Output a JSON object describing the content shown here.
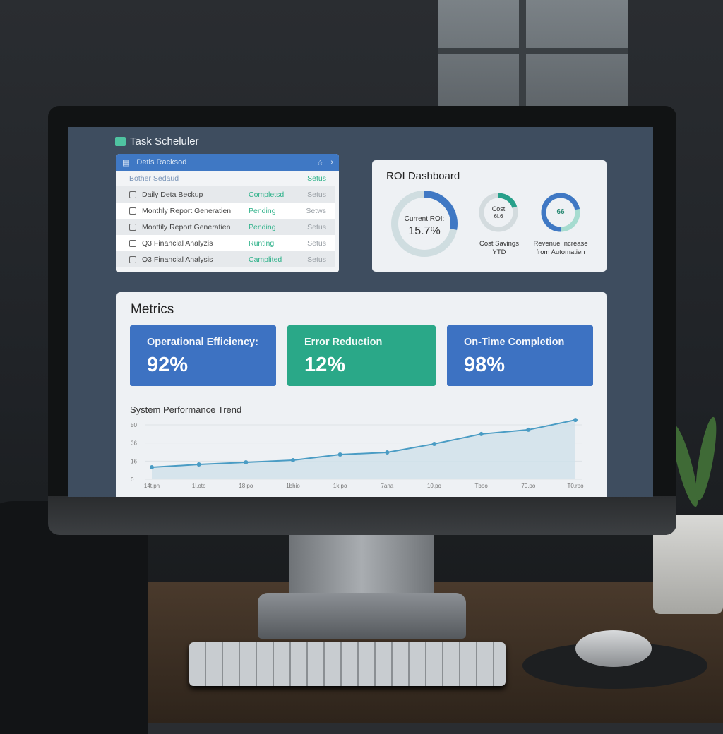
{
  "app": {
    "title": "Task Scheluler"
  },
  "tasks_panel": {
    "header": "Detis Racksod",
    "subheader": {
      "name": "Bother Sedaud",
      "status": "Setus"
    },
    "rows": [
      {
        "name": "Daily Deta Beckup",
        "status": "Completsd",
        "action": "Setus"
      },
      {
        "name": "Monthly Report Generatien",
        "status": "Pending",
        "action": "Setws"
      },
      {
        "name": "Monttily Report Generatien",
        "status": "Pending",
        "action": "Setus"
      },
      {
        "name": "Q3 Financial Analyzis",
        "status": "Runting",
        "action": "Setus"
      },
      {
        "name": "Q3 Financial Analysis",
        "status": "Camplited",
        "action": "Setus"
      }
    ]
  },
  "roi": {
    "title": "ROI Dashboard",
    "current": {
      "label": "Current ROI:",
      "value": "15.7%",
      "fill": 0.28
    },
    "cost": {
      "inner": "Cost",
      "inner_value": "6l.6",
      "label1": "Cost Savings",
      "label2": "YTD",
      "fill": 0.2
    },
    "revenue": {
      "inner": "66",
      "label1": "Revenue Increase",
      "label2": "from Automatien",
      "fill": 0.72
    }
  },
  "metrics": {
    "title": "Metrics",
    "cards": [
      {
        "label": "Operational Efficiency:",
        "value": "92%",
        "color": "#3d72c2"
      },
      {
        "label": "Error Reduction",
        "value": "12%",
        "color": "#2aa888"
      },
      {
        "label": "On-Time Completion",
        "value": "98%",
        "color": "#3d72c2"
      }
    ]
  },
  "chart_data": {
    "type": "area",
    "title": "System Performance Trend",
    "x": [
      "14t.pn",
      "1l.oto",
      "18 po",
      "1bhio",
      "1k.po",
      "7ana",
      "10.po",
      "Tboo",
      "70.po",
      "T0.rpo"
    ],
    "values": [
      11,
      13.6,
      15.6,
      17.5,
      22.7,
      24.7,
      32.5,
      41.6,
      45.5,
      54.5
    ],
    "yticks": [
      "0",
      "16",
      "36",
      "50"
    ],
    "ylim": [
      0,
      50
    ],
    "grid": true,
    "color": "#4a9cc4"
  }
}
